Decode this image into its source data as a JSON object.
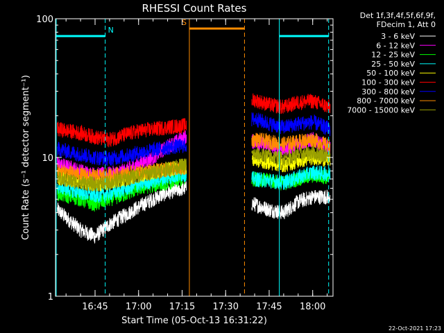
{
  "chart_data": {
    "type": "line",
    "title": "RHESSI Count Rates",
    "xlabel": "Start Time (05-Oct-13 16:31:22)",
    "ylabel": "Count Rate (s⁻¹ detector segment⁻¹)",
    "yscale": "log",
    "ylim": [
      1,
      100
    ],
    "xlim": [
      "16:31:22",
      "18:07:00"
    ],
    "x_ticks": [
      "16:45",
      "17:00",
      "17:15",
      "17:30",
      "17:45",
      "18:00"
    ],
    "y_ticks": [
      "1",
      "10",
      "100"
    ],
    "legend_position": "top-right",
    "legend_header": [
      "Det 1f,3f,4f,5f,6f,9f,",
      "FDecim 1, Att 0"
    ],
    "series": [
      {
        "name": "3 - 6 keV",
        "color": "#ffffff",
        "x": [
          "16:32",
          "16:40",
          "16:45",
          "16:50",
          "16:55",
          "17:00",
          "17:05",
          "17:10",
          "17:16",
          "17:40",
          "17:45",
          "17:50",
          "17:55",
          "18:00",
          "18:06"
        ],
        "values": [
          4.2,
          3.0,
          2.7,
          3.3,
          3.8,
          4.4,
          5.0,
          5.6,
          6.0,
          4.6,
          4.2,
          4.0,
          4.8,
          5.2,
          5.2
        ]
      },
      {
        "name": "6 - 12 keV",
        "color": "#ff00ff",
        "x": [
          "16:32",
          "16:40",
          "16:45",
          "16:50",
          "16:55",
          "17:00",
          "17:05",
          "17:10",
          "17:16",
          "17:40",
          "17:45",
          "17:50",
          "17:55",
          "18:00",
          "18:06"
        ],
        "values": [
          9.0,
          8.0,
          7.5,
          7.6,
          8.0,
          9.0,
          10.0,
          12.0,
          14.0,
          13.0,
          12.0,
          11.5,
          12.5,
          13.5,
          11.5
        ]
      },
      {
        "name": "12 - 25 keV",
        "color": "#00ff00",
        "x": [
          "16:32",
          "16:40",
          "16:45",
          "16:50",
          "16:55",
          "17:00",
          "17:05",
          "17:10",
          "17:16",
          "17:40",
          "17:45",
          "17:50",
          "17:55",
          "18:00",
          "18:06"
        ],
        "values": [
          5.5,
          5.0,
          4.6,
          5.0,
          5.4,
          6.0,
          6.3,
          6.6,
          7.0,
          7.0,
          6.8,
          6.5,
          7.0,
          7.4,
          7.2
        ]
      },
      {
        "name": "25 - 50 keV",
        "color": "#00ffff",
        "x": [
          "16:32",
          "16:40",
          "16:45",
          "16:50",
          "16:55",
          "17:00",
          "17:05",
          "17:10",
          "17:16",
          "17:40",
          "17:45",
          "17:50",
          "17:55",
          "18:00",
          "18:06"
        ],
        "values": [
          6.2,
          5.6,
          5.3,
          5.5,
          5.9,
          6.4,
          6.8,
          7.2,
          7.6,
          7.0,
          6.8,
          6.6,
          7.2,
          7.8,
          7.6
        ]
      },
      {
        "name": "50 - 100 keV",
        "color": "#ffff00",
        "x": [
          "16:32",
          "16:40",
          "16:45",
          "16:50",
          "16:55",
          "17:00",
          "17:05",
          "17:10",
          "17:16",
          "17:40",
          "17:45",
          "17:50",
          "17:55",
          "18:00",
          "18:06"
        ],
        "values": [
          7.2,
          6.7,
          6.4,
          6.6,
          7.0,
          7.4,
          7.8,
          8.2,
          8.6,
          9.6,
          9.2,
          8.8,
          9.4,
          10.0,
          9.6
        ]
      },
      {
        "name": "100 - 300 keV",
        "color": "#ff0000",
        "x": [
          "16:32",
          "16:40",
          "16:45",
          "16:50",
          "16:55",
          "17:00",
          "17:05",
          "17:10",
          "17:16",
          "17:40",
          "17:45",
          "17:50",
          "17:55",
          "18:00",
          "18:06"
        ],
        "values": [
          16.0,
          15.0,
          14.0,
          13.4,
          14.5,
          15.5,
          16.0,
          16.5,
          17.0,
          26.0,
          24.0,
          23.0,
          25.0,
          25.5,
          23.0
        ]
      },
      {
        "name": "300 - 800 keV",
        "color": "#0000ff",
        "x": [
          "16:32",
          "16:40",
          "16:45",
          "16:50",
          "16:55",
          "17:00",
          "17:05",
          "17:10",
          "17:16",
          "17:40",
          "17:45",
          "17:50",
          "17:55",
          "18:00",
          "18:06"
        ],
        "values": [
          11.5,
          10.5,
          10.0,
          9.8,
          10.2,
          10.8,
          11.3,
          11.8,
          12.2,
          19.0,
          17.5,
          16.5,
          17.5,
          18.0,
          16.0
        ]
      },
      {
        "name": "800 - 7000 keV",
        "color": "#ff8c00",
        "x": [
          "16:32",
          "16:40",
          "16:45",
          "16:50",
          "16:55",
          "17:00",
          "17:05",
          "17:10",
          "17:16",
          "17:40",
          "17:45",
          "17:50",
          "17:55",
          "18:00",
          "18:06"
        ],
        "values": [
          8.0,
          7.5,
          7.3,
          7.4,
          7.6,
          7.8,
          8.0,
          8.2,
          8.4,
          13.5,
          13.0,
          12.5,
          13.0,
          13.5,
          12.0
        ]
      },
      {
        "name": "7000 - 15000 keV",
        "color": "#9aa000",
        "x": [
          "16:32",
          "16:40",
          "16:45",
          "16:50",
          "16:55",
          "17:00",
          "17:05",
          "17:10",
          "17:16",
          "17:40",
          "17:45",
          "17:50",
          "17:55",
          "18:00",
          "18:06"
        ],
        "values": [
          7.0,
          6.6,
          6.4,
          6.6,
          7.0,
          7.4,
          7.8,
          8.3,
          8.8,
          10.5,
          10.2,
          9.8,
          10.4,
          10.8,
          10.2
        ]
      }
    ],
    "annotations": [
      {
        "label": "N",
        "color": "#00ffff",
        "x_start": "16:31:22",
        "x_end": "16:48:30",
        "level": 75
      },
      {
        "label": "S",
        "color": "#ff8c00",
        "x_start": "17:17:30",
        "x_end": "17:36:30",
        "level": 85
      },
      {
        "label": "",
        "color": "#00ffff",
        "x_start": "17:48:30",
        "x_end": "18:05:30",
        "level": 75
      }
    ],
    "vertical_lines": [
      {
        "time": "16:31:22",
        "color": "#00ffff",
        "style": "solid"
      },
      {
        "time": "16:48:30",
        "color": "#00ffff",
        "style": "dashed"
      },
      {
        "time": "17:17:30",
        "color": "#ff8c00",
        "style": "solid"
      },
      {
        "time": "17:36:30",
        "color": "#ff8c00",
        "style": "dashed"
      },
      {
        "time": "17:48:30",
        "color": "#00ffff",
        "style": "solid"
      },
      {
        "time": "18:05:30",
        "color": "#00ffff",
        "style": "dashed"
      }
    ]
  },
  "footer_timestamp": "22-Oct-2021 17:23"
}
